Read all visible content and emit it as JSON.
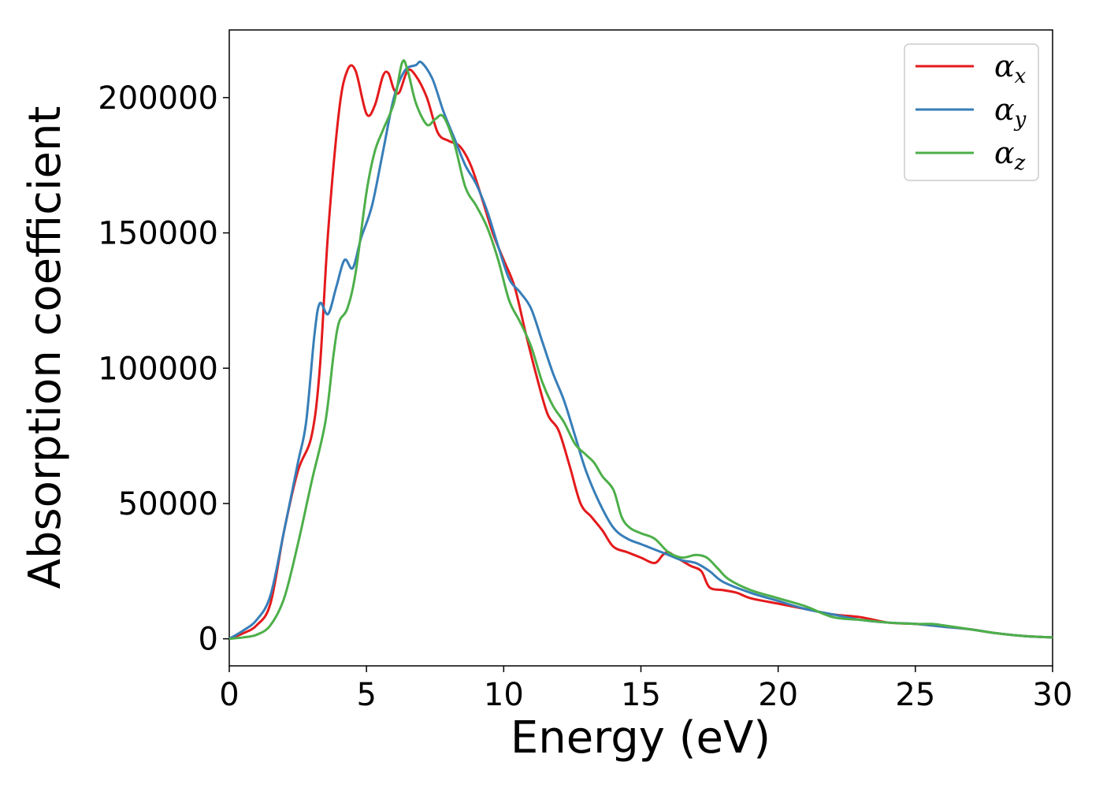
{
  "chart_data": {
    "type": "line",
    "title": "",
    "xlabel": "Energy (eV)",
    "ylabel": "Absorption coefficient",
    "xlim": [
      0,
      30
    ],
    "ylim": [
      -10000,
      225000
    ],
    "grid": false,
    "legend_position": "top-right",
    "xticks": [
      0,
      5,
      10,
      15,
      20,
      25,
      30
    ],
    "xtick_labels": [
      "0",
      "5",
      "10",
      "15",
      "20",
      "25",
      "30"
    ],
    "yticks": [
      0,
      50000,
      100000,
      150000,
      200000
    ],
    "ytick_labels": [
      "0",
      "50000",
      "100000",
      "150000",
      "200000"
    ],
    "series": [
      {
        "name": "α",
        "subscript": "x",
        "color": "#e41a1c",
        "x": [
          0,
          0.5,
          1.0,
          1.5,
          2.0,
          2.5,
          3.0,
          3.3,
          3.6,
          4.0,
          4.3,
          4.6,
          5.0,
          5.3,
          5.6,
          5.8,
          6.0,
          6.2,
          6.5,
          6.8,
          7.2,
          7.6,
          8.0,
          8.4,
          8.8,
          9.2,
          9.6,
          10.0,
          10.4,
          10.8,
          11.2,
          11.6,
          12.0,
          12.4,
          12.8,
          13.2,
          13.6,
          14.0,
          14.5,
          15.0,
          15.5,
          15.8,
          16.0,
          16.3,
          16.8,
          17.2,
          17.5,
          18.0,
          18.5,
          19.0,
          20.0,
          21.0,
          22.0,
          23.0,
          24.0,
          25.0,
          26.0,
          27.0,
          28.0,
          29.0,
          30.0
        ],
        "y": [
          0,
          2000,
          5000,
          13000,
          40000,
          62000,
          75000,
          100000,
          150000,
          195000,
          210000,
          210000,
          194000,
          197000,
          208000,
          209000,
          203000,
          202000,
          210000,
          208000,
          200000,
          187000,
          184000,
          182000,
          175000,
          163000,
          150000,
          140000,
          130000,
          113000,
          97000,
          83000,
          77000,
          64000,
          50000,
          45000,
          40000,
          34000,
          32000,
          30000,
          28000,
          31000,
          32000,
          30000,
          27000,
          25000,
          19000,
          18000,
          17000,
          15000,
          13000,
          11000,
          9000,
          8000,
          6000,
          5500,
          4500,
          3500,
          2000,
          1000,
          500
        ]
      },
      {
        "name": "α",
        "subscript": "y",
        "color": "#377eb8",
        "x": [
          0,
          0.5,
          1.0,
          1.5,
          2.0,
          2.5,
          2.8,
          3.1,
          3.3,
          3.6,
          3.9,
          4.2,
          4.5,
          4.8,
          5.2,
          5.6,
          6.0,
          6.4,
          6.8,
          7.0,
          7.4,
          7.8,
          8.2,
          8.6,
          9.0,
          9.4,
          9.8,
          10.2,
          10.6,
          11.0,
          11.4,
          11.8,
          12.2,
          12.6,
          13.0,
          13.5,
          14.0,
          14.5,
          15.0,
          15.5,
          16.0,
          16.5,
          17.0,
          17.5,
          18.0,
          19.0,
          20.0,
          21.0,
          22.0,
          23.0,
          24.0,
          25.0,
          26.0,
          27.0,
          28.0,
          29.0,
          30.0
        ],
        "y": [
          0,
          3000,
          7000,
          16000,
          40000,
          65000,
          80000,
          112000,
          124000,
          120000,
          130000,
          140000,
          137000,
          148000,
          160000,
          180000,
          200000,
          210000,
          212000,
          213000,
          207000,
          195000,
          185000,
          175000,
          168000,
          158000,
          145000,
          133000,
          128000,
          122000,
          110000,
          98000,
          88000,
          75000,
          62000,
          50000,
          41000,
          37000,
          35000,
          33000,
          31000,
          29000,
          28000,
          25000,
          21000,
          17000,
          14000,
          11000,
          9000,
          7000,
          6000,
          5500,
          4500,
          3500,
          2000,
          1000,
          500
        ]
      },
      {
        "name": "α",
        "subscript": "z",
        "color": "#4daf4a",
        "x": [
          0,
          0.5,
          1.0,
          1.5,
          2.0,
          2.5,
          3.0,
          3.5,
          3.8,
          4.0,
          4.3,
          4.6,
          5.0,
          5.3,
          5.6,
          6.0,
          6.3,
          6.5,
          6.8,
          7.2,
          7.5,
          7.8,
          8.2,
          8.6,
          9.0,
          9.4,
          9.8,
          10.2,
          10.6,
          11.0,
          11.4,
          11.8,
          12.2,
          12.6,
          13.0,
          13.3,
          13.6,
          14.0,
          14.3,
          14.6,
          15.0,
          15.5,
          16.0,
          16.5,
          17.0,
          17.4,
          17.8,
          18.2,
          19.0,
          20.0,
          21.0,
          22.0,
          23.0,
          24.0,
          25.0,
          25.6,
          26.0,
          27.0,
          28.0,
          29.0,
          30.0
        ],
        "y": [
          0,
          500,
          1500,
          5000,
          15000,
          35000,
          58000,
          80000,
          105000,
          117000,
          122000,
          135000,
          165000,
          180000,
          188000,
          198000,
          213000,
          210000,
          198000,
          190000,
          192000,
          193000,
          183000,
          167000,
          160000,
          152000,
          140000,
          125000,
          117000,
          108000,
          95000,
          86000,
          80000,
          72000,
          68000,
          65000,
          60000,
          55000,
          45000,
          41000,
          39000,
          37000,
          32000,
          30000,
          31000,
          30000,
          26000,
          22000,
          18000,
          15000,
          12000,
          8000,
          7000,
          6000,
          5500,
          5500,
          5000,
          3500,
          2000,
          1000,
          500
        ]
      }
    ]
  }
}
